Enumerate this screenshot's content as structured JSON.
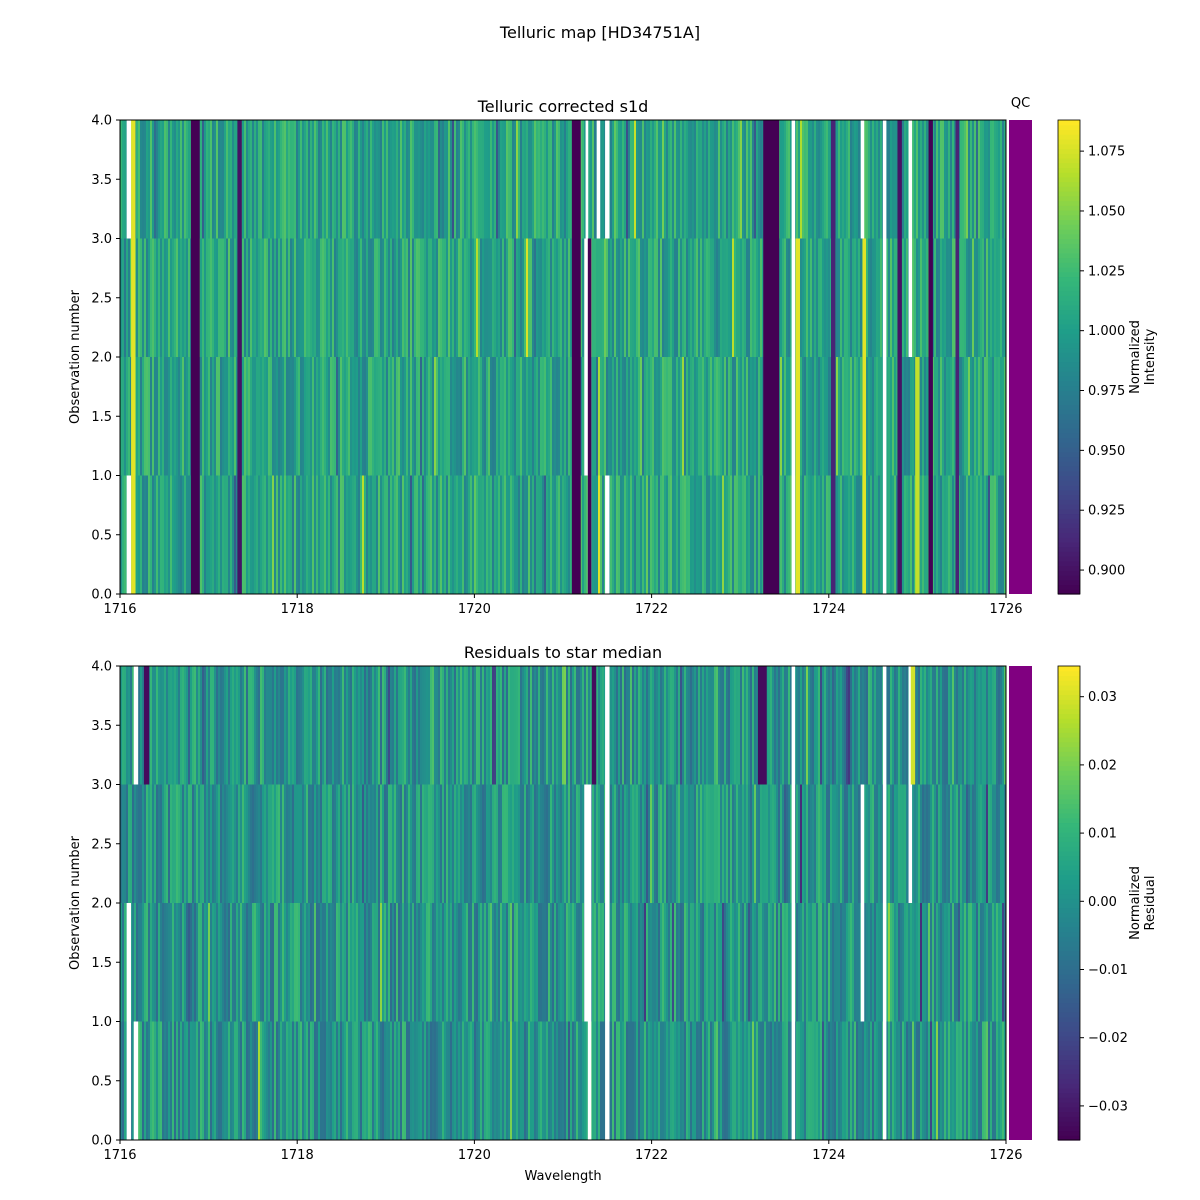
{
  "figure": {
    "suptitle": "Telluric map [HD34751A]"
  },
  "chart_data": [
    {
      "type": "heatmap",
      "title": "Telluric corrected s1d",
      "xlabel": "",
      "ylabel": "Observation number",
      "xlim": [
        1716,
        1726
      ],
      "ylim": [
        0.0,
        4.0
      ],
      "xticks": [
        "1716",
        "1718",
        "1720",
        "1722",
        "1724",
        "1726"
      ],
      "yticks": [
        "0.0",
        "0.5",
        "1.0",
        "1.5",
        "2.0",
        "2.5",
        "3.0",
        "3.5",
        "4.0"
      ],
      "rows": [
        0,
        1,
        2,
        3
      ],
      "colormap": "viridis",
      "colorbar": {
        "label_line1": "Normalized",
        "label_line2": "Intensity",
        "range": [
          0.89,
          1.088
        ],
        "ticks": [
          "0.900",
          "0.925",
          "0.950",
          "0.975",
          "1.000",
          "1.025",
          "1.050",
          "1.075"
        ]
      },
      "qc": {
        "label": "QC",
        "color": "#800080"
      },
      "features": [
        {
          "center": 1716.15,
          "width": 0.05,
          "value": 1.08,
          "rows": [
            0,
            1,
            2,
            3
          ]
        },
        {
          "center": 1716.1,
          "width": 0.05,
          "value": "gap",
          "rows": [
            0,
            3
          ]
        },
        {
          "center": 1716.85,
          "width": 0.1,
          "value": 0.89,
          "rows": [
            0,
            1,
            2,
            3
          ]
        },
        {
          "center": 1717.35,
          "width": 0.05,
          "value": 0.9,
          "rows": [
            0,
            1,
            2,
            3
          ]
        },
        {
          "center": 1721.15,
          "width": 0.1,
          "value": 0.89,
          "rows": [
            0,
            1,
            2,
            3
          ]
        },
        {
          "center": 1721.28,
          "width": 0.08,
          "value": "gap",
          "rows": [
            1,
            2
          ]
        },
        {
          "center": 1721.27,
          "width": 0.03,
          "value": "gap",
          "rows": [
            3
          ]
        },
        {
          "center": 1721.3,
          "width": 0.04,
          "value": "gap",
          "rows": [
            0
          ]
        },
        {
          "center": 1721.4,
          "width": 0.04,
          "value": "gap",
          "rows": [
            3
          ]
        },
        {
          "center": 1721.5,
          "width": 0.05,
          "value": "gap",
          "rows": [
            0,
            3
          ]
        },
        {
          "center": 1721.3,
          "width": 0.04,
          "value": 0.89,
          "rows": [
            0,
            1,
            2
          ]
        },
        {
          "center": 1723.35,
          "width": 0.18,
          "value": 0.89,
          "rows": [
            0,
            1,
            2,
            3
          ]
        },
        {
          "center": 1723.6,
          "width": 0.04,
          "value": "gap",
          "rows": [
            0,
            1,
            2,
            3
          ]
        },
        {
          "center": 1723.65,
          "width": 0.05,
          "value": 1.08,
          "rows": [
            0,
            1,
            2
          ]
        },
        {
          "center": 1724.05,
          "width": 0.05,
          "value": 0.91,
          "rows": [
            0,
            1,
            2,
            3
          ]
        },
        {
          "center": 1724.38,
          "width": 0.04,
          "value": "gap",
          "rows": [
            3
          ]
        },
        {
          "center": 1724.4,
          "width": 0.04,
          "value": 1.08,
          "rows": [
            0,
            1,
            2
          ]
        },
        {
          "center": 1724.63,
          "width": 0.04,
          "value": "gap",
          "rows": [
            0,
            1,
            2,
            3
          ]
        },
        {
          "center": 1724.8,
          "width": 0.05,
          "value": 0.9,
          "rows": [
            0,
            1,
            2,
            3
          ]
        },
        {
          "center": 1724.92,
          "width": 0.04,
          "value": "gap",
          "rows": [
            2,
            3
          ]
        },
        {
          "center": 1725.0,
          "width": 0.05,
          "value": 1.07,
          "rows": [
            0,
            1
          ]
        },
        {
          "center": 1725.15,
          "width": 0.05,
          "value": 0.89,
          "rows": [
            0,
            1,
            2,
            3
          ]
        },
        {
          "center": 1725.45,
          "width": 0.04,
          "value": 0.91,
          "rows": [
            0,
            1,
            2,
            3
          ]
        }
      ]
    },
    {
      "type": "heatmap",
      "title": "Residuals to star median",
      "xlabel": "Wavelength",
      "ylabel": "Observation number",
      "xlim": [
        1716,
        1726
      ],
      "ylim": [
        0.0,
        4.0
      ],
      "xticks": [
        "1716",
        "1718",
        "1720",
        "1722",
        "1724",
        "1726"
      ],
      "yticks": [
        "0.0",
        "0.5",
        "1.0",
        "1.5",
        "2.0",
        "2.5",
        "3.0",
        "3.5",
        "4.0"
      ],
      "rows": [
        0,
        1,
        2,
        3
      ],
      "colormap": "viridis",
      "colorbar": {
        "label_line1": "Normalized",
        "label_line2": "Residual",
        "range": [
          -0.035,
          0.0345
        ],
        "ticks": [
          "−0.03",
          "−0.02",
          "−0.01",
          "0.00",
          "0.01",
          "0.02",
          "0.03"
        ]
      },
      "qc": {
        "label": "",
        "color": "#800080"
      },
      "features": [
        {
          "center": 1716.1,
          "width": 0.05,
          "value": "gap",
          "rows": [
            0,
            1
          ]
        },
        {
          "center": 1716.18,
          "width": 0.05,
          "value": "gap",
          "rows": [
            0,
            3
          ]
        },
        {
          "center": 1716.3,
          "width": 0.06,
          "value": -0.033,
          "rows": [
            3
          ]
        },
        {
          "center": 1721.28,
          "width": 0.08,
          "value": "gap",
          "rows": [
            1,
            2
          ]
        },
        {
          "center": 1721.3,
          "width": 0.04,
          "value": "gap",
          "rows": [
            0
          ]
        },
        {
          "center": 1721.5,
          "width": 0.05,
          "value": "gap",
          "rows": [
            0,
            1,
            2,
            3
          ]
        },
        {
          "center": 1723.6,
          "width": 0.04,
          "value": "gap",
          "rows": [
            0,
            1,
            2,
            3
          ]
        },
        {
          "center": 1724.38,
          "width": 0.04,
          "value": "gap",
          "rows": [
            1,
            2
          ]
        },
        {
          "center": 1724.63,
          "width": 0.04,
          "value": "gap",
          "rows": [
            0,
            1,
            2,
            3
          ]
        },
        {
          "center": 1724.92,
          "width": 0.04,
          "value": "gap",
          "rows": [
            2,
            3
          ]
        },
        {
          "center": 1724.95,
          "width": 0.05,
          "value": 0.03,
          "rows": [
            3
          ]
        },
        {
          "center": 1721.35,
          "width": 0.05,
          "value": -0.033,
          "rows": [
            3
          ]
        },
        {
          "center": 1723.25,
          "width": 0.1,
          "value": -0.033,
          "rows": [
            3
          ]
        }
      ]
    }
  ]
}
